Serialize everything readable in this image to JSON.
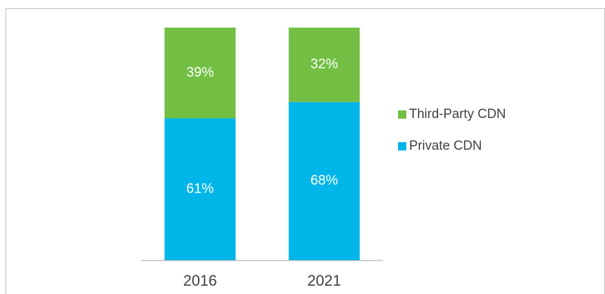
{
  "chart_data": {
    "type": "stacked_bar",
    "categories": [
      "2016",
      "2021"
    ],
    "series": [
      {
        "name": "Private CDN",
        "color": "#00b5e8",
        "values": [
          61,
          68
        ],
        "value_labels": [
          "61%",
          "68%"
        ]
      },
      {
        "name": "Third-Party CDN",
        "color": "#72bf44",
        "values": [
          39,
          32
        ],
        "value_labels": [
          "39%",
          "32%"
        ]
      }
    ],
    "ylim": [
      0,
      100
    ],
    "legend": "right"
  }
}
